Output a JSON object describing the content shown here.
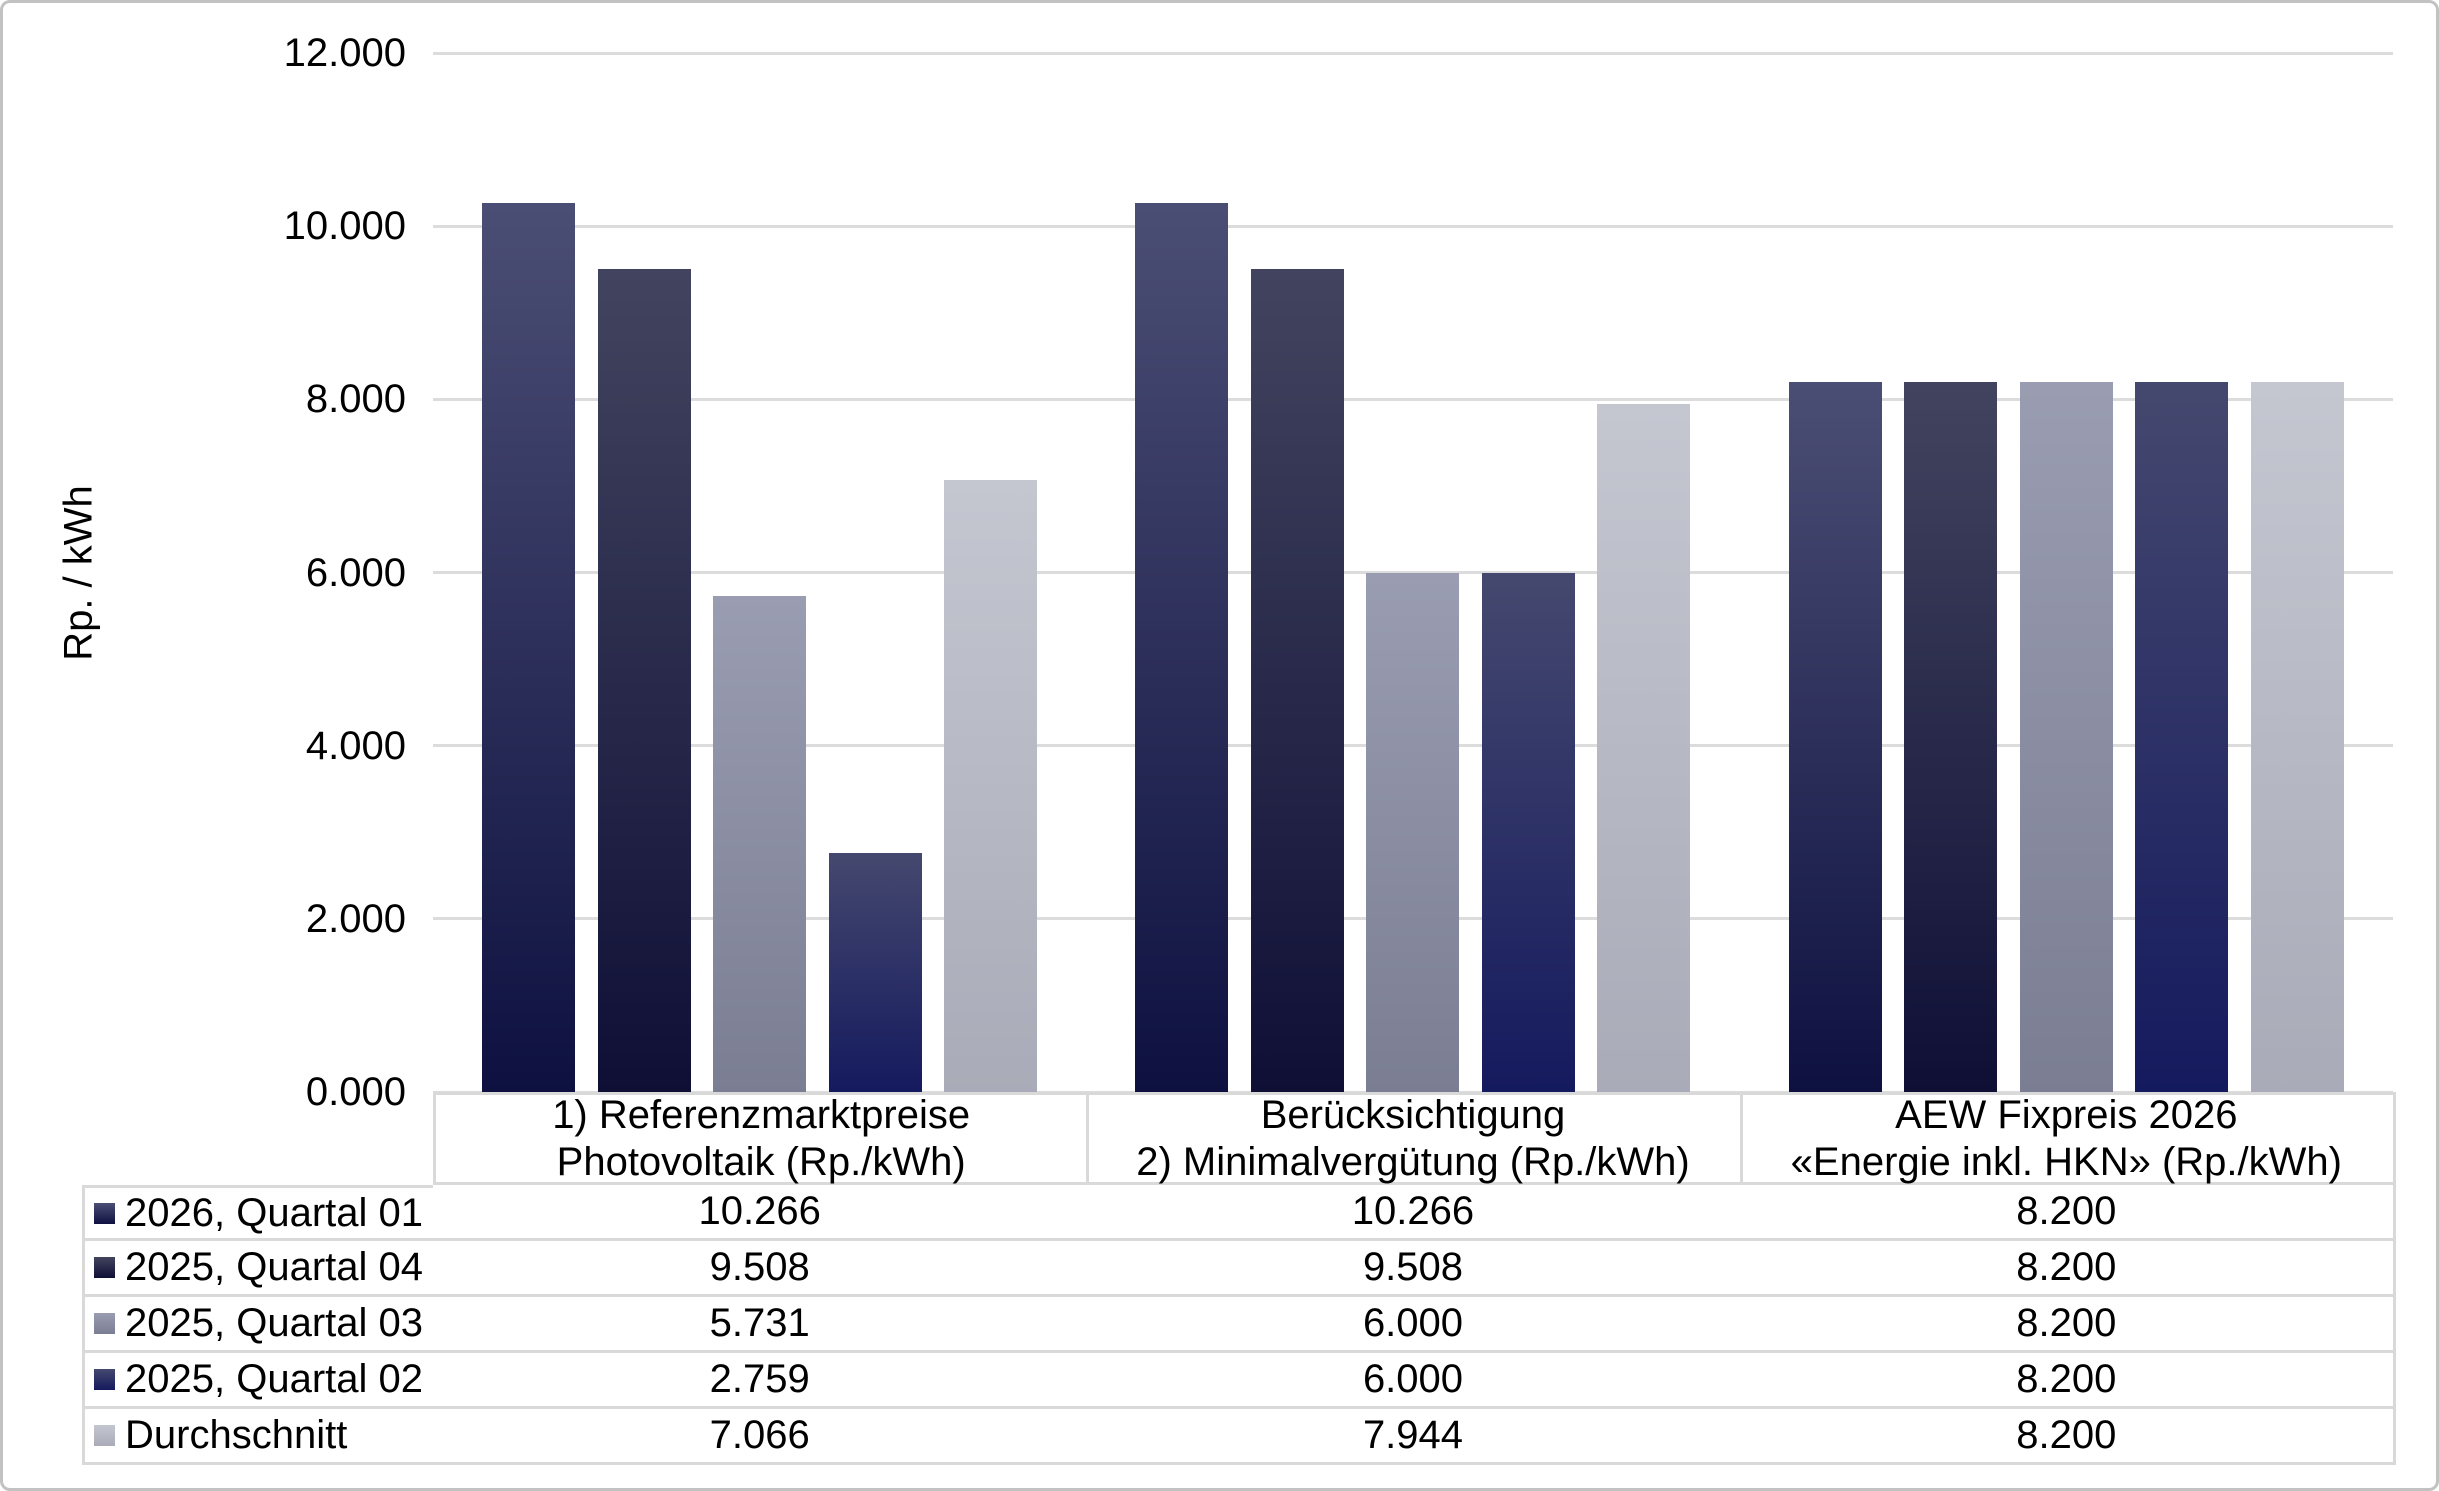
{
  "chart_data": {
    "type": "bar",
    "title": "",
    "xlabel": "",
    "ylabel": "Rp. / kWh",
    "ylim": [
      0,
      12
    ],
    "y_ticks": [
      "0.000",
      "2.000",
      "4.000",
      "6.000",
      "8.000",
      "10.000",
      "12.000"
    ],
    "grid": "horizontal gridlines on",
    "legend_position": "table rows at left of data table below chart",
    "categories": [
      {
        "lines": [
          "1) Referenzmarktpreise",
          "Photovoltaik (Rp./kWh)"
        ]
      },
      {
        "lines": [
          "Berücksichtigung",
          "2) Minimalvergütung (Rp./kWh)"
        ]
      },
      {
        "lines": [
          "AEW Fixpreis 2026",
          "«Energie inkl. HKN» (Rp./kWh)"
        ]
      }
    ],
    "series": [
      {
        "name": "2026, Quartal 01",
        "values": [
          10.266,
          10.266,
          8.2
        ],
        "display": [
          "10.266",
          "10.266",
          "8.200"
        ],
        "color_top": "#4b4e74",
        "color_bottom": "#0e1140"
      },
      {
        "name": "2025, Quartal 04",
        "values": [
          9.508,
          9.508,
          8.2
        ],
        "display": [
          "9.508",
          "9.508",
          "8.200"
        ],
        "color_top": "#42445f",
        "color_bottom": "#0f0f36"
      },
      {
        "name": "2025, Quartal 03",
        "values": [
          5.731,
          6.0,
          8.2
        ],
        "display": [
          "5.731",
          "6.000",
          "8.200"
        ],
        "color_top": "#9a9db1",
        "color_bottom": "#7b7e93"
      },
      {
        "name": "2025, Quartal 02",
        "values": [
          2.759,
          6.0,
          8.2
        ],
        "display": [
          "2.759",
          "6.000",
          "8.200"
        ],
        "color_top": "#45486e",
        "color_bottom": "#141a5e"
      },
      {
        "name": "Durchschnitt",
        "values": [
          7.066,
          7.944,
          8.2
        ],
        "display": [
          "7.066",
          "7.944",
          "8.200"
        ],
        "color_top": "#c4c6d0",
        "color_bottom": "#a9abb8"
      }
    ]
  }
}
